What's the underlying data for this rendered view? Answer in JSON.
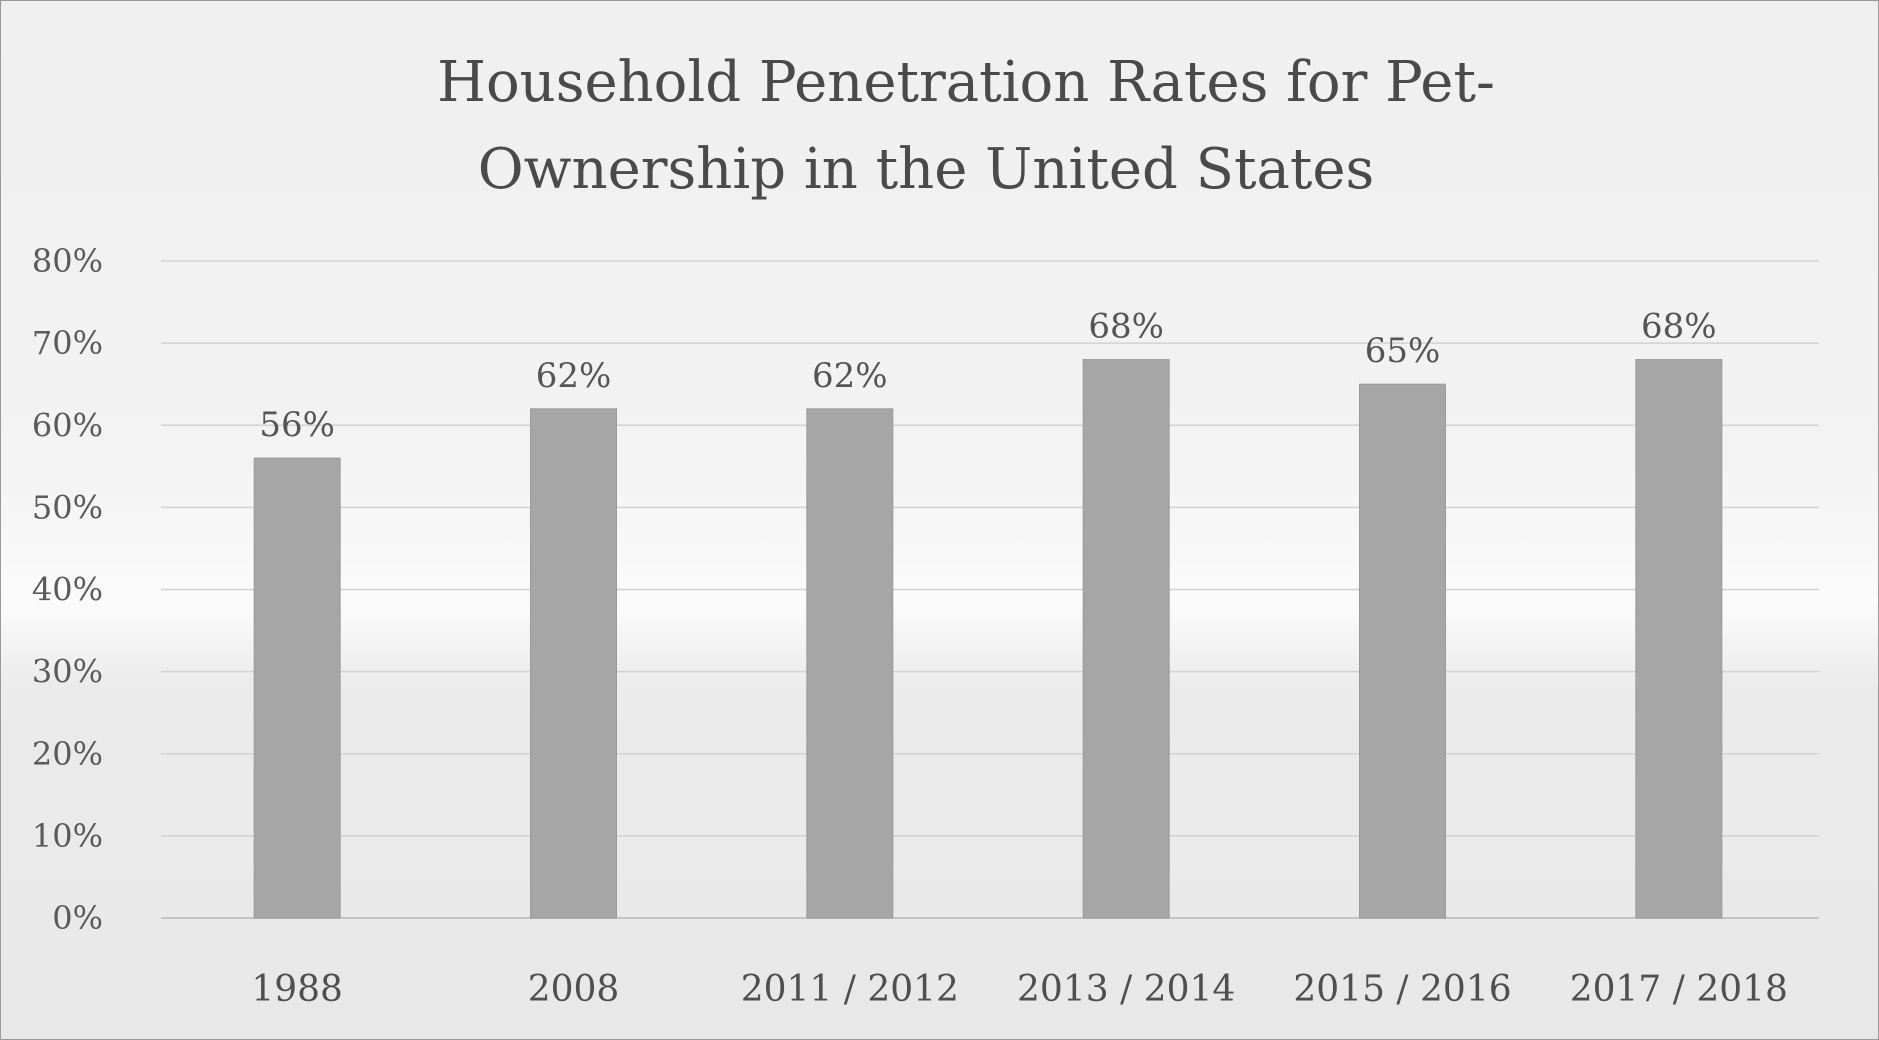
{
  "chart_data": {
    "type": "bar",
    "title_lines": [
      "Household Penetration Rates for Pet-",
      "Ownership in the United States"
    ],
    "categories": [
      "1988",
      "2008",
      "2011 / 2012",
      "2013 / 2014",
      "2015 / 2016",
      "2017 / 2018"
    ],
    "values": [
      56,
      62,
      62,
      68,
      65,
      68
    ],
    "data_labels": [
      "56%",
      "62%",
      "62%",
      "68%",
      "65%",
      "68%"
    ],
    "ylim": [
      0,
      80
    ],
    "yticks": [
      0,
      10,
      20,
      30,
      40,
      50,
      60,
      70,
      80
    ],
    "ytick_labels": [
      "0%",
      "10%",
      "20%",
      "30%",
      "40%",
      "50%",
      "60%",
      "70%",
      "80%"
    ],
    "xlabel": "",
    "ylabel": "",
    "grid": true,
    "legend": "none",
    "bar_color": "#a6a6a6"
  }
}
